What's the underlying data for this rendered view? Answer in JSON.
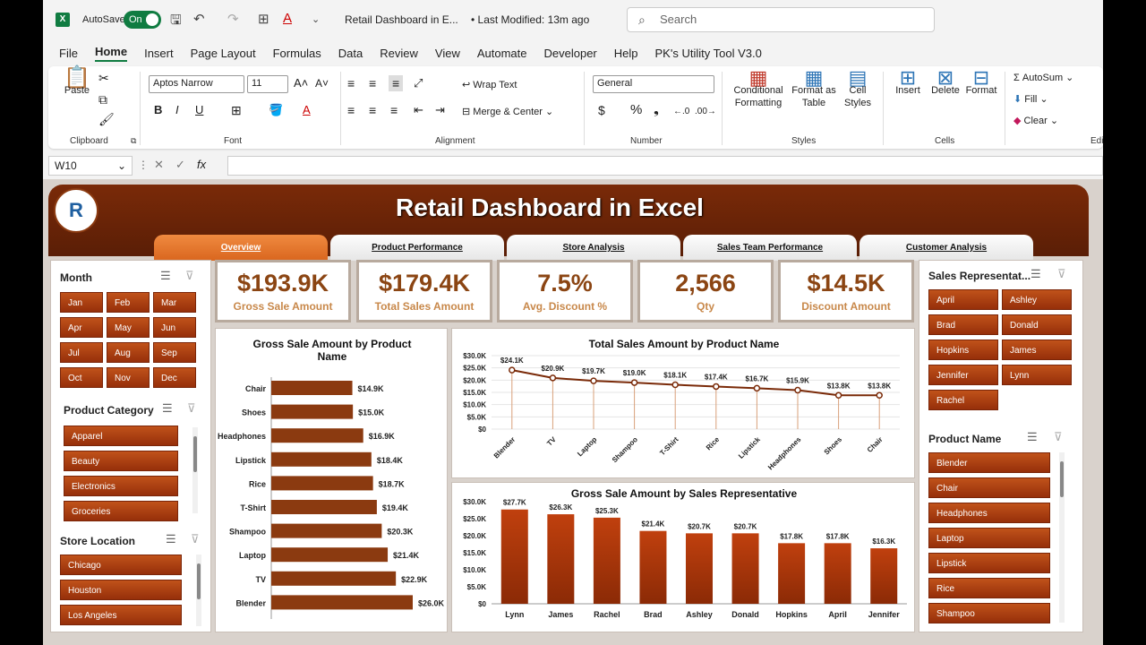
{
  "titlebar": {
    "autosave_label": "AutoSave",
    "autosave_state": "On",
    "doc_title": "Retail Dashboard in E...",
    "last_modified": "• Last Modified: 13m ago",
    "search_placeholder": "Search"
  },
  "menu": [
    "File",
    "Home",
    "Insert",
    "Page Layout",
    "Formulas",
    "Data",
    "Review",
    "View",
    "Automate",
    "Developer",
    "Help",
    "PK's Utility Tool V3.0"
  ],
  "ribbon": {
    "paste": "Paste",
    "clipboard": "Clipboard",
    "font_name": "Aptos Narrow",
    "font_size": "11",
    "font": "Font",
    "wrap_text": "Wrap Text",
    "merge_center": "Merge & Center",
    "alignment": "Alignment",
    "number_format": "General",
    "number": "Number",
    "conditional_formatting": "Conditional Formatting",
    "format_as_table": "Format as Table",
    "cell_styles": "Cell Styles",
    "styles": "Styles",
    "insert": "Insert",
    "delete": "Delete",
    "format": "Format",
    "cells": "Cells",
    "autosum": "AutoSum",
    "fill": "Fill",
    "clear": "Clear",
    "editing": "Editing"
  },
  "formula_bar": {
    "name_box": "W10",
    "fx": "fx"
  },
  "dashboard": {
    "title": "Retail Dashboard in Excel",
    "tabs": [
      "Overview",
      "Product Performance",
      "Store Analysis",
      "Sales Team Performance",
      "Customer Analysis"
    ],
    "kpis": [
      {
        "value": "$193.9K",
        "label": "Gross Sale Amount"
      },
      {
        "value": "$179.4K",
        "label": "Total Sales Amount"
      },
      {
        "value": "7.5%",
        "label": "Avg. Discount %"
      },
      {
        "value": "2,566",
        "label": "Qty"
      },
      {
        "value": "$14.5K",
        "label": "Discount Amount"
      }
    ],
    "month_slicer": {
      "title": "Month",
      "items": [
        "Jan",
        "Feb",
        "Mar",
        "Apr",
        "May",
        "Jun",
        "Jul",
        "Aug",
        "Sep",
        "Oct",
        "Nov",
        "Dec"
      ]
    },
    "category_slicer": {
      "title": "Product Category",
      "items": [
        "Apparel",
        "Beauty",
        "Electronics",
        "Groceries"
      ]
    },
    "store_slicer": {
      "title": "Store Location",
      "items": [
        "Chicago",
        "Houston",
        "Los Angeles"
      ]
    },
    "rep_slicer": {
      "title": "Sales Representat...",
      "items": [
        "April",
        "Ashley",
        "Brad",
        "Donald",
        "Hopkins",
        "James",
        "Jennifer",
        "Lynn",
        "Rachel"
      ]
    },
    "product_slicer": {
      "title": "Product Name",
      "items": [
        "Blender",
        "Chair",
        "Headphones",
        "Laptop",
        "Lipstick",
        "Rice",
        "Shampoo"
      ]
    }
  },
  "chart_data": [
    {
      "type": "bar",
      "title": "Gross Sale Amount by Product Name",
      "categories": [
        "Chair",
        "Shoes",
        "Headphones",
        "Lipstick",
        "Rice",
        "T-Shirt",
        "Shampoo",
        "Laptop",
        "TV",
        "Blender"
      ],
      "values": [
        14.9,
        15.0,
        16.9,
        18.4,
        18.7,
        19.4,
        20.3,
        21.4,
        22.9,
        26.0
      ],
      "labels": [
        "$14.9K",
        "$15.0K",
        "$16.9K",
        "$18.4K",
        "$18.7K",
        "$19.4K",
        "$20.3K",
        "$21.4K",
        "$22.9K",
        "$26.0K"
      ],
      "orientation": "horizontal",
      "color": "#8b3a10"
    },
    {
      "type": "line",
      "title": "Total Sales Amount by Product Name",
      "categories": [
        "Blender",
        "TV",
        "Laptop",
        "Shampoo",
        "T-Shirt",
        "Rice",
        "Lipstick",
        "Headphones",
        "Shoes",
        "Chair"
      ],
      "values": [
        24.1,
        20.9,
        19.7,
        19.0,
        18.1,
        17.4,
        16.7,
        15.9,
        13.8,
        13.8
      ],
      "labels": [
        "$24.1K",
        "$20.9K",
        "$19.7K",
        "$19.0K",
        "$18.1K",
        "$17.4K",
        "$16.7K",
        "$15.9K",
        "$13.8K",
        "$13.8K"
      ],
      "yticks": [
        "$30.0K",
        "$25.0K",
        "$20.0K",
        "$15.0K",
        "$10.0K",
        "$5.0K",
        "$0"
      ],
      "ylim": [
        0,
        30
      ],
      "color": "#7a2a08"
    },
    {
      "type": "bar",
      "title": "Gross Sale Amount by Sales Representative",
      "categories": [
        "Lynn",
        "James",
        "Rachel",
        "Brad",
        "Ashley",
        "Donald",
        "Hopkins",
        "April",
        "Jennifer"
      ],
      "values": [
        27.7,
        26.3,
        25.3,
        21.4,
        20.7,
        20.7,
        17.8,
        17.8,
        16.3
      ],
      "labels": [
        "$27.7K",
        "$26.3K",
        "$25.3K",
        "$21.4K",
        "$20.7K",
        "$20.7K",
        "$17.8K",
        "$17.8K",
        "$16.3K"
      ],
      "yticks": [
        "$30.0K",
        "$25.0K",
        "$20.0K",
        "$15.0K",
        "$10.0K",
        "$5.0K",
        "$0"
      ],
      "ylim": [
        0,
        30
      ],
      "color": "#c0400e"
    }
  ]
}
